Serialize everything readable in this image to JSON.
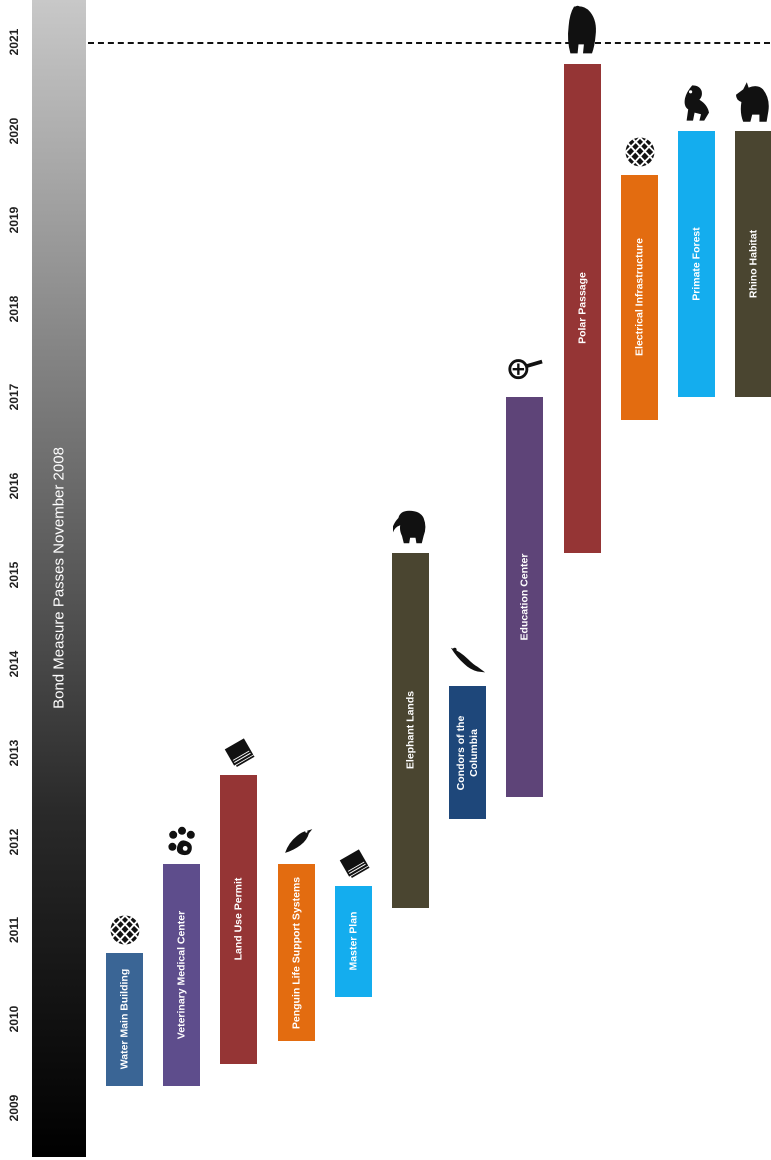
{
  "chart_data": {
    "type": "bar",
    "orientation": "vertical-timeline",
    "y_axis": {
      "ticks": [
        "2009",
        "2010",
        "2011",
        "2012",
        "2013",
        "2014",
        "2015",
        "2016",
        "2017",
        "2018",
        "2019",
        "2020",
        "2021"
      ],
      "range": [
        2009,
        2021
      ]
    },
    "band_label": "Bond Measure Passes November 2008",
    "reference_line": {
      "year": 2021,
      "style": "dashed"
    },
    "projects": [
      {
        "label": "Water Main Building",
        "start": 2009.25,
        "end": 2010.75,
        "color": "#3a6595",
        "icon": "globe-icon"
      },
      {
        "label": "Veterinary Medical Center",
        "start": 2009.25,
        "end": 2011.75,
        "color": "#5e4d8c",
        "icon": "paw-icon"
      },
      {
        "label": "Land Use Permit",
        "start": 2009.5,
        "end": 2012.75,
        "color": "#953535",
        "icon": "book-icon"
      },
      {
        "label": "Penguin Life Support Systems",
        "start": 2009.75,
        "end": 2011.75,
        "color": "#e36c10",
        "icon": "penguin-icon"
      },
      {
        "label": "Master Plan",
        "start": 2010.25,
        "end": 2011.5,
        "color": "#14adee",
        "icon": "book-icon"
      },
      {
        "label": "Elephant Lands",
        "start": 2011.25,
        "end": 2015.25,
        "color": "#4a4530",
        "icon": "elephant-icon"
      },
      {
        "label": "Condors of the Columbia",
        "start": 2012.25,
        "end": 2013.75,
        "color": "#1e477a",
        "icon": "condor-icon"
      },
      {
        "label": "Education Center",
        "start": 2012.5,
        "end": 2017.0,
        "color": "#5e4478",
        "icon": "magnifier-icon"
      },
      {
        "label": "Polar Passage",
        "start": 2015.25,
        "end": 2020.75,
        "color": "#953535",
        "icon": "bear-icon"
      },
      {
        "label": "Electrical Infrastructure",
        "start": 2016.75,
        "end": 2019.5,
        "color": "#e36c10",
        "icon": "globe-icon"
      },
      {
        "label": "Primate Forest",
        "start": 2017.0,
        "end": 2020.0,
        "color": "#14adee",
        "icon": "primate-icon"
      },
      {
        "label": "Rhino Habitat",
        "start": 2017.0,
        "end": 2020.0,
        "color": "#4a4530",
        "icon": "rhino-icon"
      }
    ]
  }
}
